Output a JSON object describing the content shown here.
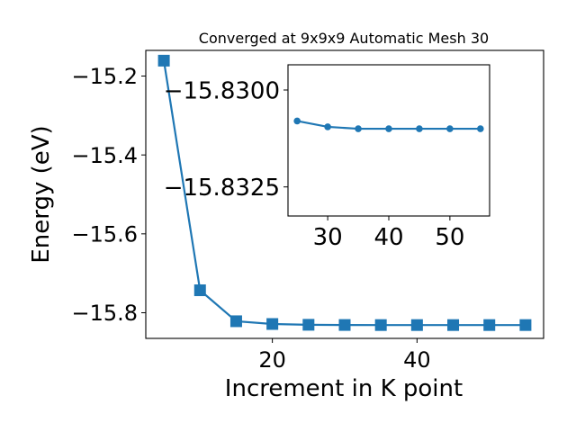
{
  "chart_data": [
    {
      "type": "line",
      "title": "Converged at 9x9x9 Automatic Mesh 30",
      "xlabel": "Increment in K point",
      "ylabel": "Energy (eV)",
      "xlim": [
        2.5,
        57.5
      ],
      "ylim": [
        -15.865,
        -15.135
      ],
      "xticks": [
        20,
        40
      ],
      "xtick_labels": [
        "20",
        "40"
      ],
      "yticks": [
        -15.2,
        -15.4,
        -15.6,
        -15.8
      ],
      "ytick_labels": [
        "−15.2",
        "−15.4",
        "−15.6",
        "−15.8"
      ],
      "marker": "square",
      "color": "#1f77b4",
      "grid": false,
      "series": [
        {
          "x": [
            5,
            10,
            15,
            20,
            25,
            30,
            35,
            40,
            45,
            50,
            55
          ],
          "y": [
            -15.161,
            -15.743,
            -15.8215,
            -15.8285,
            -15.8305,
            -15.831,
            -15.8312,
            -15.8312,
            -15.8312,
            -15.8312,
            -15.8312
          ]
        }
      ]
    },
    {
      "type": "line",
      "inset": true,
      "xlim": [
        23.5,
        56.5
      ],
      "ylim": [
        -15.83325,
        -15.82935
      ],
      "xticks": [
        30,
        40,
        50
      ],
      "xtick_labels": [
        "30",
        "40",
        "50"
      ],
      "yticks": [
        -15.8325,
        -15.83
      ],
      "ytick_labels": [
        "−15.8325",
        "−15.8300"
      ],
      "marker": "circle",
      "color": "#1f77b4",
      "grid": false,
      "series": [
        {
          "x": [
            25,
            30,
            35,
            40,
            45,
            50,
            55
          ],
          "y": [
            -15.8308,
            -15.83095,
            -15.831,
            -15.831,
            -15.831,
            -15.831,
            -15.831
          ]
        }
      ]
    }
  ]
}
